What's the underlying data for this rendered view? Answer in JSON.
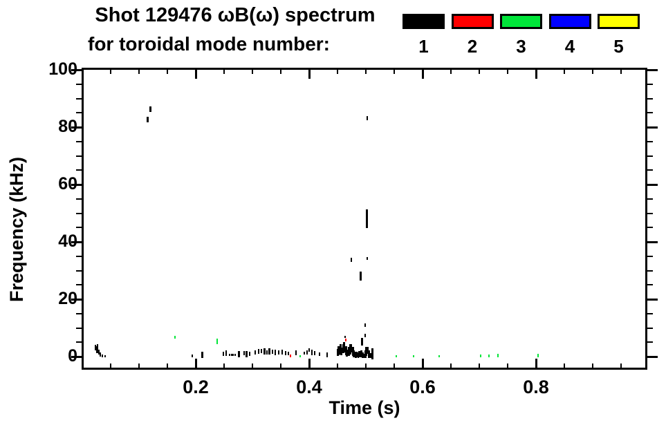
{
  "header": {
    "title_line1": "Shot 129476 ωB(ω) spectrum",
    "title_line2": "for toroidal mode number:",
    "legend": {
      "items": [
        {
          "label": "1",
          "color": "#000000"
        },
        {
          "label": "2",
          "color": "#ff0000"
        },
        {
          "label": "3",
          "color": "#00e539"
        },
        {
          "label": "4",
          "color": "#0000ff"
        },
        {
          "label": "5",
          "color": "#ffff00"
        }
      ]
    }
  },
  "axes": {
    "x": {
      "label": "Time (s)",
      "tick_labels": [
        "0.2",
        "0.4",
        "0.6",
        "0.8"
      ]
    },
    "y": {
      "label": "Frequency (kHz)",
      "tick_labels": [
        "0",
        "20",
        "40",
        "60",
        "80",
        "100"
      ]
    }
  },
  "chart_data": {
    "type": "scatter",
    "title": "Shot 129476 ωB(ω) spectrum for toroidal mode number: 1 2 3 4 5",
    "xlabel": "Time (s)",
    "ylabel": "Frequency (kHz)",
    "xlim": [
      0,
      1.0
    ],
    "ylim": [
      0,
      100
    ],
    "x_major_ticks": [
      0.2,
      0.4,
      0.6,
      0.8
    ],
    "x_minor_step": 0.05,
    "y_major_ticks": [
      0,
      20,
      40,
      60,
      80,
      100
    ],
    "y_minor_step": 5,
    "grid": false,
    "legend_position": "top-right",
    "point_format": "[time_s, freq_kHz_center, extent_kHz]",
    "series": [
      {
        "name": "toroidal mode n=1",
        "mode": 1,
        "color": "#000000",
        "points": [
          [
            0.023,
            3.2,
            1.9
          ],
          [
            0.027,
            4.0,
            0.9
          ],
          [
            0.026,
            2.4,
            2.2
          ],
          [
            0.029,
            1.6,
            1.7
          ],
          [
            0.032,
            0.7,
            1.4
          ],
          [
            0.035,
            0.2,
            0.9
          ],
          [
            0.04,
            0.1,
            0.5
          ],
          [
            0.115,
            82.6,
            2.0
          ],
          [
            0.12,
            86.3,
            2.0
          ],
          [
            0.194,
            0.3,
            1.0
          ],
          [
            0.212,
            0.6,
            2.0
          ],
          [
            0.249,
            1.0,
            1.5
          ],
          [
            0.254,
            1.2,
            1.8
          ],
          [
            0.26,
            0.7,
            0.7
          ],
          [
            0.263,
            0.7,
            0.7
          ],
          [
            0.266,
            0.7,
            0.7
          ],
          [
            0.269,
            0.7,
            0.7
          ],
          [
            0.276,
            0.8,
            2.2
          ],
          [
            0.285,
            1.2,
            1.5
          ],
          [
            0.29,
            0.8,
            2.2
          ],
          [
            0.295,
            1.0,
            1.5
          ],
          [
            0.305,
            1.5,
            1.5
          ],
          [
            0.311,
            1.8,
            1.8
          ],
          [
            0.316,
            2.0,
            1.5
          ],
          [
            0.321,
            1.8,
            2.0
          ],
          [
            0.326,
            1.5,
            1.5
          ],
          [
            0.33,
            1.9,
            2.2
          ],
          [
            0.335,
            1.6,
            1.5
          ],
          [
            0.34,
            1.5,
            1.8
          ],
          [
            0.346,
            1.4,
            1.5
          ],
          [
            0.352,
            1.6,
            1.8
          ],
          [
            0.359,
            1.2,
            1.5
          ],
          [
            0.363,
            1.0,
            1.2
          ],
          [
            0.377,
            1.3,
            1.5
          ],
          [
            0.391,
            1.2,
            1.2
          ],
          [
            0.396,
            1.5,
            1.5
          ],
          [
            0.4,
            2.2,
            1.2
          ],
          [
            0.405,
            1.5,
            1.8
          ],
          [
            0.41,
            1.2,
            1.5
          ],
          [
            0.418,
            0.8,
            1.2
          ],
          [
            0.432,
            0.6,
            1.5
          ],
          [
            0.45,
            1.5,
            2.5
          ],
          [
            0.452,
            2.0,
            3.0
          ],
          [
            0.455,
            2.5,
            3.5
          ],
          [
            0.457,
            1.8,
            2.5
          ],
          [
            0.46,
            2.8,
            3.0
          ],
          [
            0.462,
            3.2,
            3.5
          ],
          [
            0.465,
            2.0,
            3.0
          ],
          [
            0.467,
            1.2,
            2.5
          ],
          [
            0.47,
            1.8,
            3.0
          ],
          [
            0.472,
            2.5,
            3.5
          ],
          [
            0.474,
            2.9,
            3.0
          ],
          [
            0.477,
            1.8,
            3.0
          ],
          [
            0.479,
            1.0,
            2.5
          ],
          [
            0.482,
            0.6,
            2.0
          ],
          [
            0.484,
            0.8,
            2.0
          ],
          [
            0.487,
            0.5,
            1.8
          ],
          [
            0.489,
            0.8,
            2.2
          ],
          [
            0.492,
            1.0,
            2.5
          ],
          [
            0.494,
            0.5,
            2.0
          ],
          [
            0.496,
            0.3,
            1.5
          ],
          [
            0.499,
            0.8,
            2.5
          ],
          [
            0.501,
            1.8,
            3.0
          ],
          [
            0.503,
            2.2,
            2.5
          ],
          [
            0.506,
            0.8,
            2.5
          ],
          [
            0.508,
            0.3,
            1.8
          ],
          [
            0.511,
            1.0,
            4.0
          ],
          [
            0.464,
            6.9,
            0.8
          ],
          [
            0.493,
            5.2,
            2.8
          ],
          [
            0.499,
            7.3,
            1.2
          ],
          [
            0.499,
            10.9,
            1.2
          ],
          [
            0.491,
            28.0,
            3.2
          ],
          [
            0.474,
            33.8,
            1.4
          ],
          [
            0.502,
            34.2,
            1.0
          ],
          [
            0.502,
            48.0,
            6.5
          ],
          [
            0.503,
            83.2,
            1.4
          ]
        ]
      },
      {
        "name": "toroidal mode n=2",
        "mode": 2,
        "color": "#ff0000",
        "points": [
          [
            0.367,
            0.3,
            1.0
          ],
          [
            0.465,
            5.8,
            1.0
          ]
        ]
      },
      {
        "name": "toroidal mode n=3",
        "mode": 3,
        "color": "#00e539",
        "points": [
          [
            0.163,
            6.8,
            1.0
          ],
          [
            0.238,
            5.2,
            1.9
          ],
          [
            0.384,
            0.1,
            0.8
          ],
          [
            0.554,
            0.2,
            0.8
          ],
          [
            0.584,
            0.2,
            0.8
          ],
          [
            0.629,
            0.1,
            0.6
          ],
          [
            0.702,
            0.3,
            1.0
          ],
          [
            0.717,
            0.3,
            1.0
          ],
          [
            0.733,
            0.4,
            1.2
          ],
          [
            0.804,
            0.4,
            1.2
          ]
        ]
      },
      {
        "name": "toroidal mode n=4",
        "mode": 4,
        "color": "#0000ff",
        "points": []
      },
      {
        "name": "toroidal mode n=5",
        "mode": 5,
        "color": "#ffff00",
        "points": []
      }
    ]
  }
}
